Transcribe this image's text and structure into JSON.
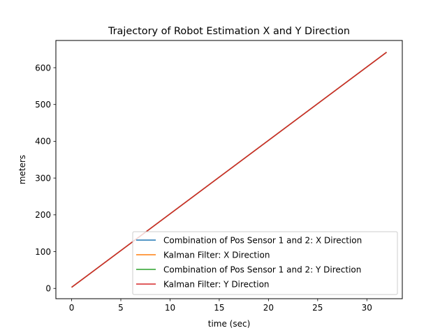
{
  "chart_data": {
    "type": "line",
    "title": "Trajectory of Robot Estimation X and Y Direction",
    "xlabel": "time (sec)",
    "ylabel": "meters",
    "xlim": [
      -1.6,
      33.6
    ],
    "ylim": [
      -28,
      674
    ],
    "xticks": [
      0,
      5,
      10,
      15,
      20,
      25,
      30
    ],
    "yticks": [
      0,
      100,
      200,
      300,
      400,
      500,
      600
    ],
    "grid": false,
    "legend_position": "lower right",
    "series": [
      {
        "name": "Combination of Pos Sensor 1 and 2: X Direction",
        "color": "#1f77b4",
        "x": [
          0,
          32
        ],
        "y": [
          3,
          642
        ]
      },
      {
        "name": "Kalman Filter: X Direction",
        "color": "#ff7f0e",
        "x": [
          0,
          32
        ],
        "y": [
          3,
          642
        ]
      },
      {
        "name": "Combination of Pos Sensor 1 and 2: Y Direction",
        "color": "#2ca02c",
        "x": [
          0,
          32
        ],
        "y": [
          3,
          642
        ]
      },
      {
        "name": "Kalman Filter: Y Direction",
        "color": "#d62728",
        "x": [
          0,
          32
        ],
        "y": [
          3,
          642
        ]
      }
    ]
  }
}
